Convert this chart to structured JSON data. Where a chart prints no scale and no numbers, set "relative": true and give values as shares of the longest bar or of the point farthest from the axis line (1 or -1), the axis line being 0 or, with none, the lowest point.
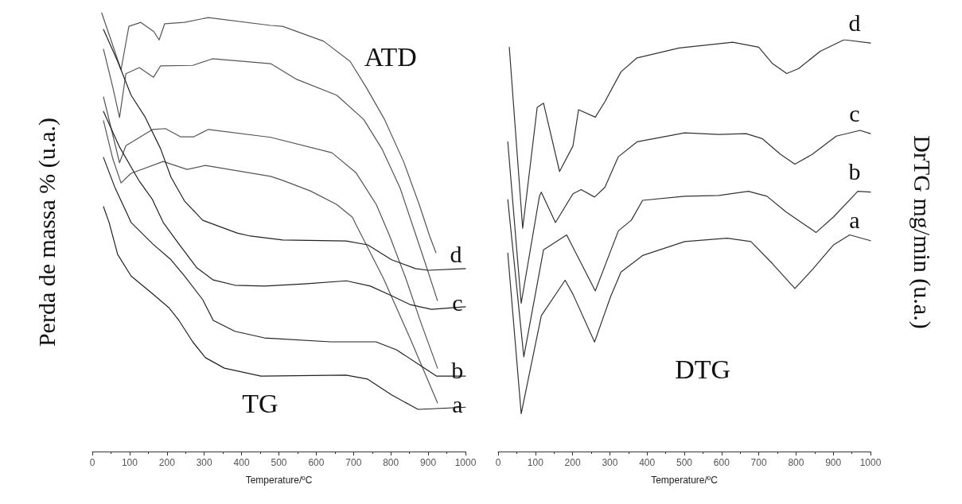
{
  "chart_data": [
    {
      "type": "line",
      "relative": true,
      "xlabel": "Temperature/ºC",
      "ylabel": "Perda de massa % (u.a.)",
      "xlim": [
        0,
        1000
      ],
      "xticks": [
        0,
        100,
        200,
        300,
        400,
        500,
        600,
        700,
        800,
        900,
        1000
      ],
      "annotations": [
        "ATD",
        "TG"
      ],
      "series": [
        {
          "name": "d",
          "color": "#555555",
          "x": [
            25,
            50,
            77,
            98,
            130,
            165,
            179,
            194,
            247,
            311,
            478,
            510,
            620,
            691,
            734,
            783,
            834,
            876,
            904,
            921
          ],
          "values": [
            1.0,
            0.938,
            0.87,
            0.969,
            0.978,
            0.957,
            0.938,
            0.975,
            0.978,
            0.989,
            0.971,
            0.969,
            0.935,
            0.889,
            0.83,
            0.757,
            0.661,
            0.563,
            0.491,
            0.453
          ]
        },
        {
          "name": "c",
          "color": "#555555",
          "x": [
            30,
            55,
            73,
            90,
            126,
            164,
            183,
            269,
            322,
            478,
            548,
            655,
            727,
            776,
            825,
            868,
            895,
            925
          ],
          "values": [
            0.917,
            0.83,
            0.761,
            0.861,
            0.875,
            0.853,
            0.879,
            0.88,
            0.895,
            0.884,
            0.848,
            0.812,
            0.757,
            0.69,
            0.6,
            0.491,
            0.422,
            0.344
          ]
        },
        {
          "name": "b",
          "color": "#555555",
          "x": [
            30,
            55,
            73,
            90,
            162,
            196,
            237,
            271,
            311,
            478,
            642,
            706,
            761,
            797,
            840,
            880,
            925
          ],
          "values": [
            0.808,
            0.721,
            0.658,
            0.697,
            0.734,
            0.736,
            0.717,
            0.717,
            0.734,
            0.716,
            0.681,
            0.636,
            0.563,
            0.491,
            0.395,
            0.295,
            0.19
          ]
        },
        {
          "name": "a",
          "color": "#555555",
          "x": [
            30,
            55,
            77,
            104,
            190,
            254,
            303,
            478,
            510,
            584,
            655,
            697,
            706,
            780,
            851,
            925
          ],
          "values": [
            0.754,
            0.667,
            0.612,
            0.634,
            0.661,
            0.643,
            0.652,
            0.627,
            0.618,
            0.594,
            0.563,
            0.534,
            0.518,
            0.395,
            0.259,
            0.111
          ]
        },
        {
          "color": "#222222",
          "x": [
            30,
            68,
            104,
            141,
            183,
            211,
            247,
            296,
            388,
            424,
            510,
            680,
            738,
            802,
            866,
            900,
            1000
          ],
          "values": [
            0.962,
            0.889,
            0.812,
            0.763,
            0.69,
            0.625,
            0.571,
            0.527,
            0.498,
            0.491,
            0.482,
            0.48,
            0.471,
            0.437,
            0.417,
            0.413,
            0.417
          ]
        },
        {
          "color": "#222222",
          "x": [
            30,
            73,
            126,
            160,
            190,
            232,
            281,
            324,
            382,
            461,
            568,
            681,
            745,
            802,
            851,
            909,
            1000
          ],
          "values": [
            0.775,
            0.694,
            0.616,
            0.576,
            0.522,
            0.473,
            0.418,
            0.391,
            0.379,
            0.377,
            0.382,
            0.389,
            0.377,
            0.355,
            0.335,
            0.324,
            0.33
          ]
        },
        {
          "color": "#222222",
          "x": [
            30,
            60,
            104,
            162,
            211,
            247,
            296,
            324,
            382,
            461,
            638,
            760,
            815,
            879,
            922,
            1000
          ],
          "values": [
            0.67,
            0.603,
            0.522,
            0.473,
            0.437,
            0.4,
            0.346,
            0.299,
            0.274,
            0.259,
            0.25,
            0.25,
            0.232,
            0.196,
            0.172,
            0.172
          ]
        },
        {
          "color": "#222222",
          "x": [
            30,
            45,
            68,
            104,
            162,
            205,
            232,
            269,
            303,
            354,
            452,
            680,
            738,
            802,
            873,
            1000
          ],
          "values": [
            0.558,
            0.522,
            0.449,
            0.4,
            0.359,
            0.328,
            0.299,
            0.25,
            0.214,
            0.19,
            0.172,
            0.174,
            0.165,
            0.129,
            0.096,
            0.101
          ]
        }
      ]
    },
    {
      "type": "line",
      "relative": true,
      "xlabel": "Temperature/ºC",
      "ylabel": "DrTG mg/min (u.a.)",
      "xlim": [
        0,
        1000
      ],
      "xticks": [
        0,
        100,
        200,
        300,
        400,
        500,
        600,
        700,
        800,
        900,
        1000
      ],
      "annotations": [
        "DTG"
      ],
      "series": [
        {
          "name": "d",
          "color": "#333333",
          "x": [
            30,
            66,
            105,
            122,
            165,
            201,
            216,
            261,
            287,
            330,
            373,
            486,
            630,
            700,
            737,
            775,
            807,
            865,
            929,
            1000
          ],
          "values": [
            0.982,
            0.542,
            0.836,
            0.846,
            0.68,
            0.742,
            0.83,
            0.812,
            0.85,
            0.922,
            0.956,
            0.98,
            0.994,
            0.982,
            0.942,
            0.918,
            0.93,
            0.972,
            1.0,
            0.992
          ]
        },
        {
          "name": "c",
          "color": "#333333",
          "x": [
            26,
            62,
            111,
            116,
            154,
            201,
            223,
            259,
            287,
            323,
            373,
            501,
            593,
            666,
            709,
            758,
            797,
            844,
            908,
            972,
            1000
          ],
          "values": [
            0.752,
            0.36,
            0.62,
            0.63,
            0.556,
            0.626,
            0.636,
            0.618,
            0.642,
            0.716,
            0.752,
            0.774,
            0.77,
            0.772,
            0.76,
            0.722,
            0.698,
            0.722,
            0.766,
            0.78,
            0.772
          ]
        },
        {
          "name": "b",
          "color": "#333333",
          "x": [
            26,
            69,
            122,
            184,
            261,
            323,
            358,
            388,
            501,
            593,
            672,
            722,
            773,
            854,
            901,
            966,
            1000
          ],
          "values": [
            0.612,
            0.23,
            0.49,
            0.526,
            0.39,
            0.536,
            0.562,
            0.61,
            0.62,
            0.622,
            0.632,
            0.62,
            0.582,
            0.532,
            0.57,
            0.632,
            0.63
          ]
        },
        {
          "name": "a",
          "color": "#333333",
          "x": [
            26,
            62,
            116,
            180,
            201,
            259,
            302,
            330,
            388,
            501,
            615,
            679,
            737,
            797,
            844,
            901,
            944,
            1000
          ],
          "values": [
            0.482,
            0.092,
            0.33,
            0.416,
            0.382,
            0.266,
            0.376,
            0.436,
            0.476,
            0.51,
            0.518,
            0.51,
            0.456,
            0.396,
            0.442,
            0.502,
            0.526,
            0.512
          ]
        }
      ]
    }
  ]
}
